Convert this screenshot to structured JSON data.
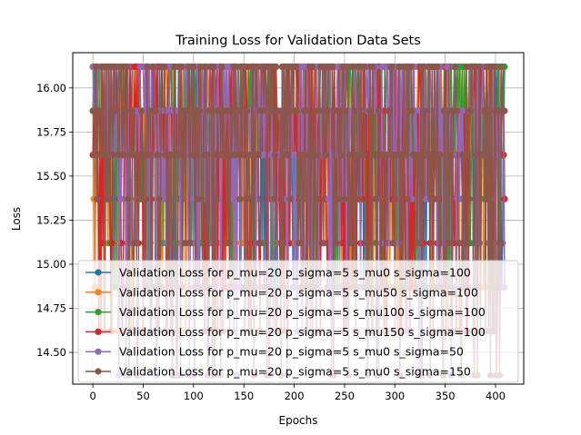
{
  "chart_data": {
    "type": "line",
    "title": "Training Loss for Validation Data Sets",
    "xlabel": "Epochs",
    "ylabel": "Loss",
    "xlim": [
      -20,
      428
    ],
    "ylim": [
      14.32,
      16.2
    ],
    "x_ticks": [
      0,
      50,
      100,
      150,
      200,
      250,
      300,
      350,
      400
    ],
    "x_tick_labels": [
      "0",
      "50",
      "100",
      "150",
      "200",
      "250",
      "300",
      "350",
      "400"
    ],
    "y_ticks": [
      14.5,
      14.75,
      15.0,
      15.25,
      15.5,
      15.75,
      16.0
    ],
    "y_tick_labels": [
      "14.50",
      "14.75",
      "15.00",
      "15.25",
      "15.50",
      "15.75",
      "16.00"
    ],
    "grid": true,
    "legend_position": "lower-center",
    "value_levels": [
      16.12,
      15.87,
      15.62,
      15.37,
      15.12,
      14.87,
      14.62,
      14.37
    ],
    "epochs": 410,
    "series": [
      {
        "name": "Validation Loss for p_mu=20 p_sigma=5 s_mu0 s_sigma=100",
        "color": "#1f77b4",
        "y_min": 14.87,
        "y_max": 16.12,
        "seed": 11
      },
      {
        "name": "Validation Loss for p_mu=20 p_sigma=5 s_mu50 s_sigma=100",
        "color": "#ff7f0e",
        "y_min": 14.62,
        "y_max": 16.12,
        "seed": 23
      },
      {
        "name": "Validation Loss for p_mu=20 p_sigma=5 s_mu100 s_sigma=100",
        "color": "#2ca02c",
        "y_min": 14.87,
        "y_max": 16.12,
        "seed": 37
      },
      {
        "name": "Validation Loss for p_mu=20 p_sigma=5 s_mu150 s_sigma=100",
        "color": "#d62728",
        "y_min": 14.62,
        "y_max": 16.12,
        "seed": 41
      },
      {
        "name": "Validation Loss for p_mu=20 p_sigma=5 s_mu0 s_sigma=50",
        "color": "#9467bd",
        "y_min": 14.37,
        "y_max": 16.12,
        "seed": 53
      },
      {
        "name": "Validation Loss for p_mu=20 p_sigma=5 s_mu0 s_sigma=150",
        "color": "#8c564b",
        "y_min": 14.37,
        "y_max": 16.12,
        "seed": 67
      }
    ]
  }
}
